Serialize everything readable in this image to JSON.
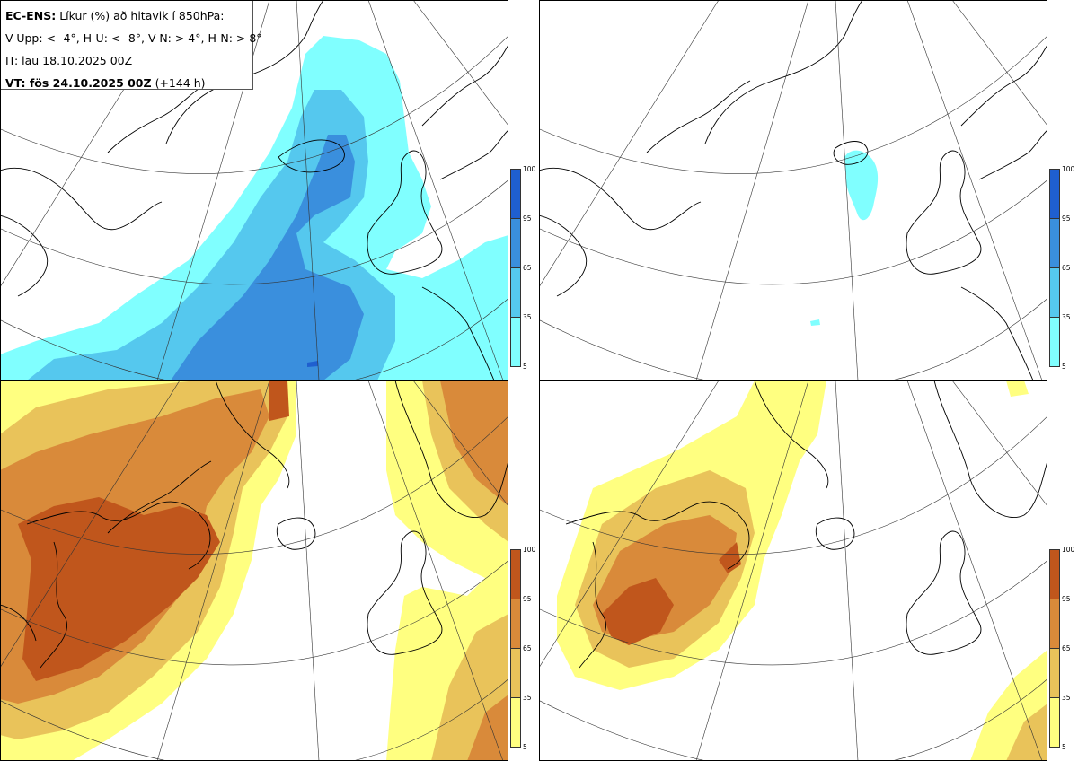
{
  "header": {
    "title_bold": "EC-ENS:",
    "title_rest": "Líkur (%) að hitavik í 850hPa:",
    "categories": "V-Upp: < -4°, H-U: < -8°, V-N: > 4°, H-N: > 8°",
    "initial_time": "IT: lau 18.10.2025 00Z",
    "valid_label": "VT: fös 24.10.2025 00Z",
    "lead_time": "(+144 h)"
  },
  "colorbar_ticks": [
    "100",
    "95",
    "65",
    "35",
    "5"
  ],
  "colors": {
    "cold": [
      "#80ffff",
      "#55c8ee",
      "#3a8fdd",
      "#1f5fcf"
    ],
    "warm": [
      "#ffff80",
      "#e9c35a",
      "#d98a3a",
      "#c0561c"
    ]
  },
  "panels": [
    {
      "id": "tl",
      "variable": "cold-anomaly-below-minus-4",
      "palette": "cold"
    },
    {
      "id": "tr",
      "variable": "cold-anomaly-below-minus-8",
      "palette": "cold"
    },
    {
      "id": "bl",
      "variable": "warm-anomaly-above-4",
      "palette": "warm"
    },
    {
      "id": "br",
      "variable": "warm-anomaly-above-8",
      "palette": "warm"
    }
  ]
}
